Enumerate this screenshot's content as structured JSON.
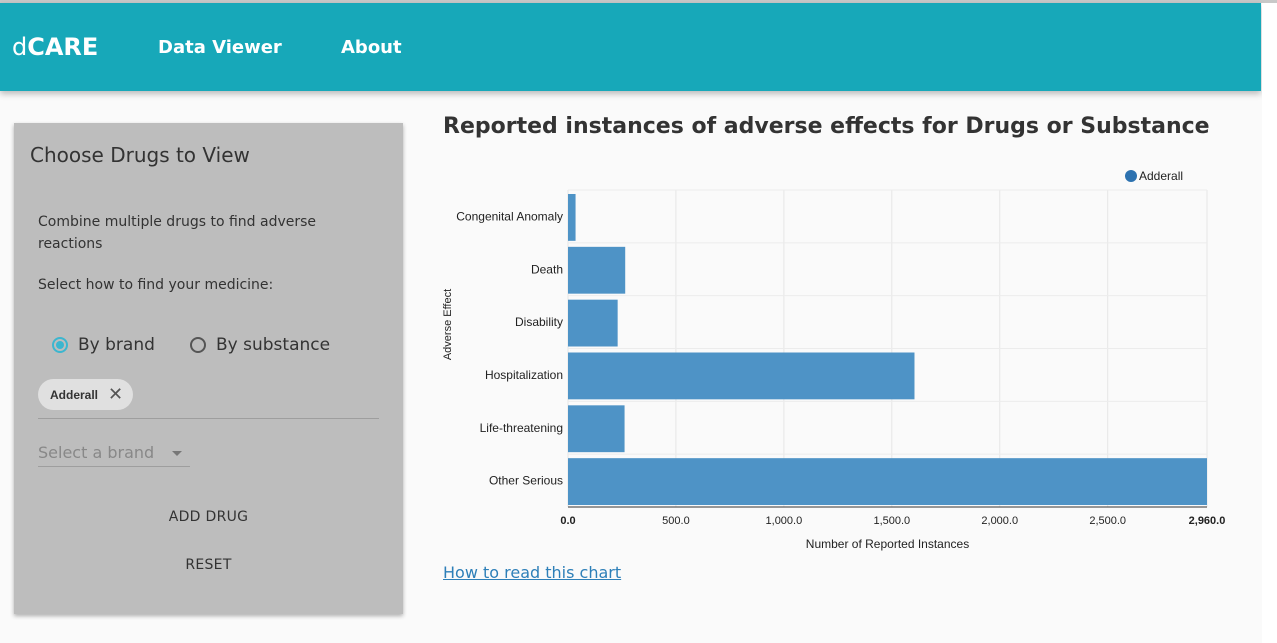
{
  "app": {
    "brand_prefix": "d",
    "brand_bold": "CARE",
    "nav": [
      "Data Viewer",
      "About"
    ]
  },
  "sidebar": {
    "title": "Choose Drugs to View",
    "description": "Combine multiple drugs to find adverse reactions",
    "instruction": "Select how to find your medicine:",
    "radio_brand": "By brand",
    "radio_substance": "By substance",
    "selected_mode": "By brand",
    "chips": [
      "Adderall"
    ],
    "select_placeholder": "Select a brand",
    "add_button": "ADD DRUG",
    "reset_button": "RESET"
  },
  "main": {
    "title": "Reported instances of adverse effects for Drugs or Substance",
    "help_link": "How to read this chart"
  },
  "chart_data": {
    "type": "bar",
    "orientation": "horizontal",
    "categories": [
      "Congenital Anomaly",
      "Death",
      "Disability",
      "Hospitalization",
      "Life-threatening",
      "Other Serious"
    ],
    "series": [
      {
        "name": "Adderall",
        "color": "#4e93c6",
        "values": [
          35,
          265,
          230,
          1605,
          262,
          2960
        ]
      }
    ],
    "xlabel": "Number of Reported Instances",
    "ylabel": "Adverse Effect",
    "xlim": [
      0,
      2960
    ],
    "xticks": [
      "0.0",
      "500.0",
      "1,000.0",
      "1,500.0",
      "2,000.0",
      "2,500.0",
      "2,960.0"
    ],
    "xtick_values": [
      0,
      500,
      1000,
      1500,
      2000,
      2500,
      2960
    ],
    "grid": true,
    "legend_position": "top-right",
    "legend_marker_color": "#2d72b0"
  }
}
